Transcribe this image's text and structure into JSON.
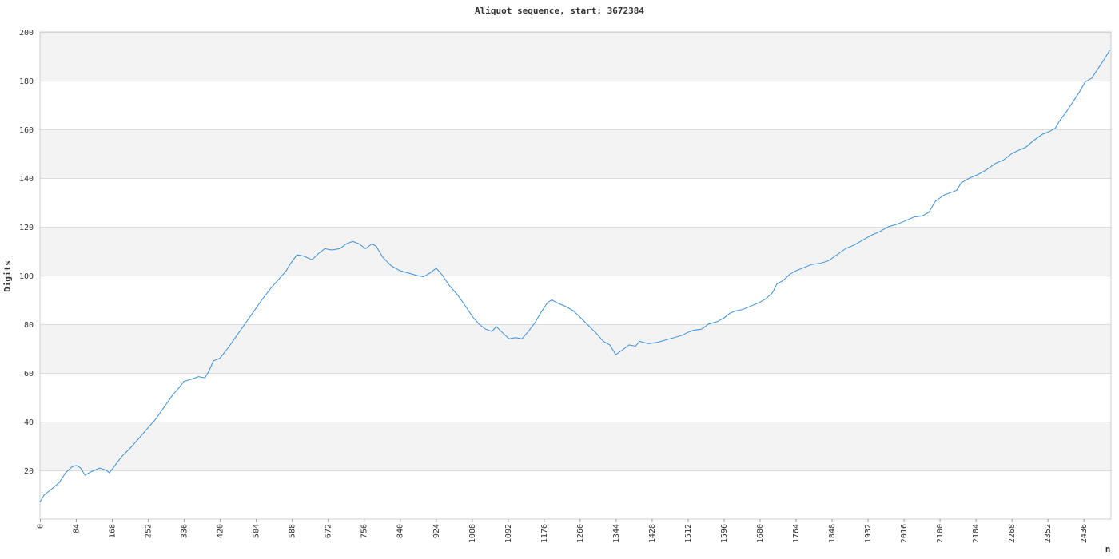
{
  "chart_data": {
    "type": "line",
    "title": "Aliquot sequence, start: 3672384",
    "xlabel": "n",
    "ylabel": "Digits",
    "xlim": [
      0,
      2500
    ],
    "ylim": [
      0,
      200
    ],
    "x_ticks": [
      0,
      84,
      168,
      252,
      336,
      420,
      504,
      588,
      672,
      756,
      840,
      924,
      1008,
      1092,
      1176,
      1260,
      1344,
      1428,
      1512,
      1596,
      1680,
      1764,
      1848,
      1932,
      2016,
      2100,
      2184,
      2268,
      2352,
      2436
    ],
    "y_ticks": [
      20,
      40,
      60,
      80,
      100,
      120,
      140,
      160,
      180,
      200
    ],
    "grid": true,
    "band_colors": [
      "#f3f3f3",
      "#ffffff"
    ],
    "line_color": "#3b8fd9",
    "series": [
      {
        "points": [
          [
            0,
            7
          ],
          [
            10,
            10
          ],
          [
            25,
            12
          ],
          [
            45,
            15
          ],
          [
            60,
            19
          ],
          [
            75,
            21.5
          ],
          [
            85,
            22
          ],
          [
            95,
            21
          ],
          [
            105,
            18
          ],
          [
            120,
            19.5
          ],
          [
            140,
            21
          ],
          [
            155,
            20
          ],
          [
            162,
            19
          ],
          [
            175,
            22
          ],
          [
            190,
            25.5
          ],
          [
            210,
            29
          ],
          [
            230,
            33
          ],
          [
            250,
            37
          ],
          [
            270,
            41
          ],
          [
            290,
            46
          ],
          [
            310,
            51
          ],
          [
            325,
            54
          ],
          [
            336,
            56.5
          ],
          [
            355,
            57.5
          ],
          [
            370,
            58.5
          ],
          [
            385,
            58
          ],
          [
            395,
            61
          ],
          [
            405,
            65
          ],
          [
            420,
            66
          ],
          [
            440,
            70.5
          ],
          [
            460,
            75.5
          ],
          [
            480,
            80.5
          ],
          [
            500,
            85.5
          ],
          [
            520,
            90.5
          ],
          [
            540,
            95
          ],
          [
            560,
            99
          ],
          [
            575,
            102
          ],
          [
            585,
            105
          ],
          [
            600,
            108.5
          ],
          [
            615,
            108
          ],
          [
            635,
            106.5
          ],
          [
            650,
            109
          ],
          [
            665,
            111
          ],
          [
            680,
            110.5
          ],
          [
            700,
            111
          ],
          [
            715,
            113
          ],
          [
            730,
            114
          ],
          [
            745,
            113
          ],
          [
            760,
            111
          ],
          [
            775,
            113
          ],
          [
            785,
            112
          ],
          [
            800,
            107.5
          ],
          [
            820,
            104
          ],
          [
            840,
            102
          ],
          [
            860,
            101
          ],
          [
            880,
            100
          ],
          [
            895,
            99.5
          ],
          [
            910,
            101
          ],
          [
            925,
            103
          ],
          [
            940,
            100
          ],
          [
            955,
            96
          ],
          [
            975,
            92
          ],
          [
            995,
            87
          ],
          [
            1010,
            83
          ],
          [
            1025,
            80
          ],
          [
            1040,
            78
          ],
          [
            1055,
            77
          ],
          [
            1065,
            79
          ],
          [
            1080,
            76.5
          ],
          [
            1095,
            74
          ],
          [
            1110,
            74.5
          ],
          [
            1125,
            74
          ],
          [
            1140,
            77
          ],
          [
            1155,
            80.5
          ],
          [
            1170,
            85
          ],
          [
            1185,
            89
          ],
          [
            1195,
            90
          ],
          [
            1210,
            88.5
          ],
          [
            1225,
            87.5
          ],
          [
            1245,
            85.5
          ],
          [
            1260,
            83
          ],
          [
            1280,
            79.5
          ],
          [
            1300,
            76
          ],
          [
            1315,
            73
          ],
          [
            1330,
            71.5
          ],
          [
            1344,
            67.5
          ],
          [
            1360,
            69.5
          ],
          [
            1375,
            71.5
          ],
          [
            1390,
            71
          ],
          [
            1400,
            73
          ],
          [
            1420,
            72
          ],
          [
            1440,
            72.5
          ],
          [
            1460,
            73.5
          ],
          [
            1480,
            74.5
          ],
          [
            1500,
            75.5
          ],
          [
            1510,
            76.5
          ],
          [
            1525,
            77.5
          ],
          [
            1545,
            78
          ],
          [
            1560,
            80
          ],
          [
            1580,
            81
          ],
          [
            1596,
            82.5
          ],
          [
            1610,
            84.5
          ],
          [
            1625,
            85.5
          ],
          [
            1640,
            86
          ],
          [
            1660,
            87.5
          ],
          [
            1680,
            89
          ],
          [
            1695,
            90.5
          ],
          [
            1710,
            93
          ],
          [
            1720,
            96.5
          ],
          [
            1735,
            98
          ],
          [
            1750,
            100.5
          ],
          [
            1765,
            102
          ],
          [
            1780,
            103
          ],
          [
            1800,
            104.5
          ],
          [
            1820,
            105
          ],
          [
            1840,
            106
          ],
          [
            1860,
            108.5
          ],
          [
            1880,
            111
          ],
          [
            1900,
            112.5
          ],
          [
            1920,
            114.5
          ],
          [
            1940,
            116.5
          ],
          [
            1960,
            118
          ],
          [
            1980,
            120
          ],
          [
            2000,
            121
          ],
          [
            2020,
            122.5
          ],
          [
            2040,
            124
          ],
          [
            2060,
            124.5
          ],
          [
            2075,
            126
          ],
          [
            2090,
            130.5
          ],
          [
            2110,
            133
          ],
          [
            2125,
            134
          ],
          [
            2140,
            135
          ],
          [
            2150,
            138
          ],
          [
            2170,
            140
          ],
          [
            2190,
            141.5
          ],
          [
            2210,
            143.5
          ],
          [
            2230,
            146
          ],
          [
            2250,
            147.5
          ],
          [
            2268,
            150
          ],
          [
            2285,
            151.5
          ],
          [
            2300,
            152.5
          ],
          [
            2320,
            155.5
          ],
          [
            2340,
            158
          ],
          [
            2355,
            159
          ],
          [
            2370,
            160.5
          ],
          [
            2380,
            163.5
          ],
          [
            2395,
            167
          ],
          [
            2410,
            171
          ],
          [
            2425,
            175
          ],
          [
            2440,
            179.5
          ],
          [
            2455,
            181
          ],
          [
            2470,
            185
          ],
          [
            2485,
            189
          ],
          [
            2497,
            192.5
          ]
        ]
      }
    ]
  }
}
